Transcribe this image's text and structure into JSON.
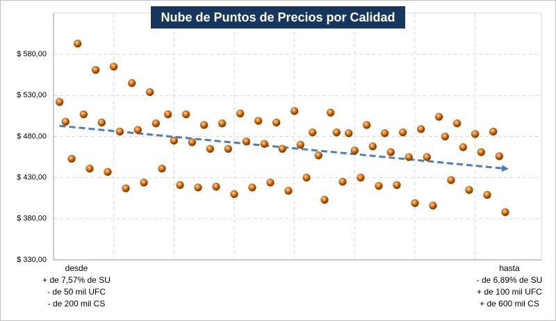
{
  "chart_data": {
    "type": "scatter",
    "title": "Nube de Puntos de Precios por Calidad",
    "x": [
      1,
      2,
      3,
      4,
      5,
      6,
      7,
      8,
      9,
      10,
      11,
      12,
      13,
      14,
      15,
      16,
      17,
      18,
      19,
      20,
      21,
      22,
      23,
      24,
      25,
      26,
      27,
      28,
      29,
      30,
      31,
      32,
      33,
      34,
      35,
      36,
      37,
      38,
      39,
      40,
      41,
      42,
      43,
      44,
      45,
      46,
      47,
      48,
      49,
      50,
      51,
      52,
      53,
      54,
      55,
      56,
      57,
      58,
      59,
      60,
      61,
      62,
      63,
      64,
      65,
      66,
      67,
      68,
      69,
      70,
      71,
      72,
      73,
      74,
      75
    ],
    "y": [
      522,
      498,
      453,
      593,
      507,
      441,
      561,
      497,
      437,
      565,
      486,
      417,
      545,
      488,
      424,
      534,
      496,
      441,
      507,
      475,
      421,
      507,
      473,
      418,
      494,
      465,
      419,
      496,
      465,
      410,
      508,
      474,
      418,
      499,
      471,
      424,
      497,
      465,
      414,
      511,
      470,
      430,
      485,
      457,
      403,
      509,
      485,
      425,
      484,
      463,
      430,
      494,
      468,
      420,
      484,
      461,
      421,
      485,
      455,
      399,
      489,
      455,
      396,
      504,
      480,
      427,
      496,
      467,
      415,
      483,
      461,
      409,
      486,
      456,
      388
    ],
    "color": "#c0640a",
    "trend": {
      "x": [
        1,
        75
      ],
      "values": [
        493,
        441
      ],
      "color": "#4a7ebb"
    },
    "xlim": [
      0,
      81
    ],
    "xticks": [
      10,
      20,
      30,
      40,
      50,
      60,
      70
    ],
    "ylim": [
      330,
      630
    ],
    "yticks": [
      {
        "value": 330,
        "label": "$ 330,00"
      },
      {
        "value": 380,
        "label": "$ 380,00"
      },
      {
        "value": 430,
        "label": "$ 430,00"
      },
      {
        "value": 480,
        "label": "$ 480,00"
      },
      {
        "value": 530,
        "label": "$ 530,00"
      },
      {
        "value": 580,
        "label": "$ 580,00"
      }
    ],
    "grid": true,
    "left_note": [
      "desde",
      "+ de 7,57% de SU",
      "- de 50 mil UFC",
      "- de 200 mil CS"
    ],
    "right_note": [
      "hasta",
      "- de 6,89% de SU",
      "+ de 100 mil UFC",
      "+ de 600 mil CS"
    ]
  }
}
